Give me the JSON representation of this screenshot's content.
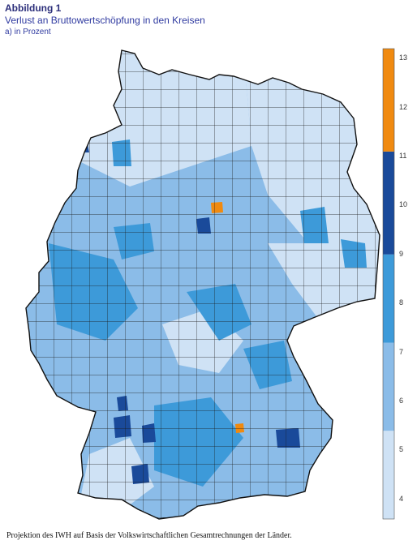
{
  "header": {
    "figure_label": "Abbildung 1",
    "title": "Verlust an Bruttowertschöpfung in den Kreisen",
    "subtitle": "a)  in Prozent"
  },
  "legend": {
    "ticks": [
      "4",
      "5",
      "6",
      "7",
      "8",
      "9",
      "10",
      "11",
      "12",
      "13"
    ],
    "bands": [
      {
        "from": 3.6,
        "to": 5.4,
        "color": "#cfe2f5"
      },
      {
        "from": 5.4,
        "to": 7.2,
        "color": "#8bbce8"
      },
      {
        "from": 7.2,
        "to": 9.0,
        "color": "#3d9ad9"
      },
      {
        "from": 9.0,
        "to": 11.1,
        "color": "#1a4a9a"
      },
      {
        "from": 11.1,
        "to": 13.2,
        "color": "#f08a10"
      }
    ],
    "range": [
      3.6,
      13.2
    ]
  },
  "footer": {
    "source": "Projektion des IWH auf Basis der Volkswirtschaftlichen Gesamtrechnungen der Länder."
  }
}
